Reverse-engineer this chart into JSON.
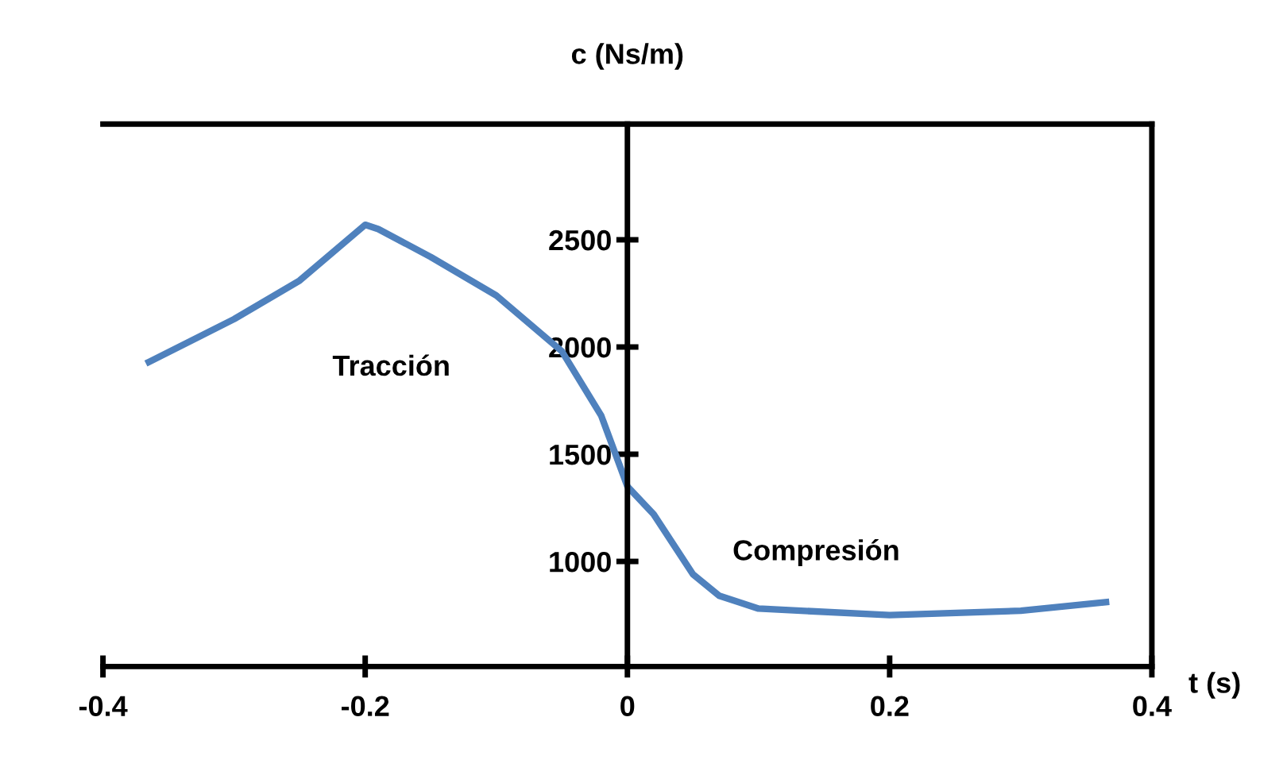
{
  "chart_data": {
    "type": "line",
    "xlabel": "t (s)",
    "ylabel": "c (Ns/m)",
    "x": [
      -0.365,
      -0.3,
      -0.25,
      -0.2,
      -0.19,
      -0.15,
      -0.1,
      -0.05,
      -0.02,
      0,
      0.02,
      0.05,
      0.07,
      0.1,
      0.2,
      0.3,
      0.365
    ],
    "series": [
      {
        "color": "#4f81bd",
        "values": [
          1930,
          2130,
          2310,
          2570,
          2550,
          2420,
          2240,
          1980,
          1680,
          1350,
          1220,
          940,
          840,
          780,
          750,
          770,
          810
        ]
      }
    ],
    "xlim": [
      -0.4,
      0.4
    ],
    "ylim": [
      510,
      3040
    ],
    "xticks": [
      -0.4,
      -0.2,
      0,
      0.2,
      0.4
    ],
    "yticks": [
      1000,
      1500,
      2000,
      2500
    ],
    "annotations": [
      "Tracción",
      "Compresión"
    ],
    "grid": false,
    "legend": false,
    "marker": "none",
    "line_style": "solid"
  }
}
